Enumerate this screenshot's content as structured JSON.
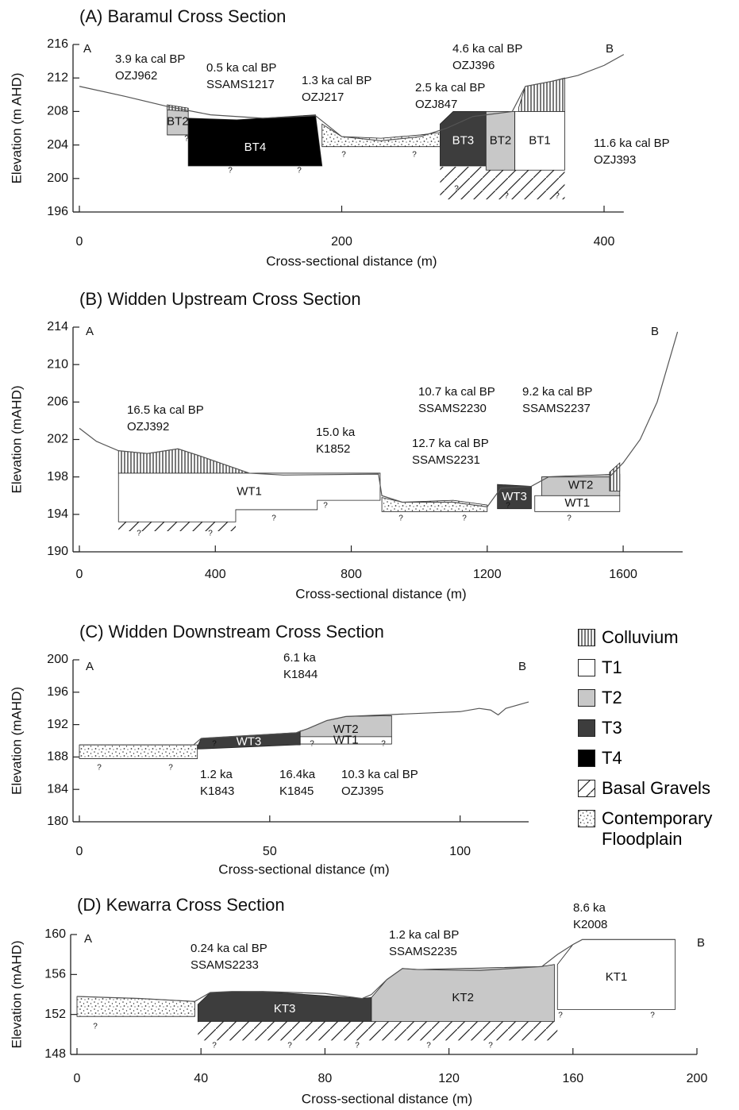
{
  "chart_data": [
    {
      "type": "profile",
      "title": "(A) Baramul Cross Section",
      "xlabel": "Cross-sectional distance (m)",
      "ylabel": "Elevation (m AHD)",
      "xlim": [
        0,
        415
      ],
      "ylim": [
        196,
        216
      ],
      "xticks": [
        0,
        200,
        400
      ],
      "yticks": [
        196,
        200,
        204,
        208,
        212,
        216
      ],
      "end_labels": [
        "A",
        "B"
      ],
      "series": [
        {
          "color": "#555555",
          "x": [
            0,
            35,
            67,
            100,
            140,
            180,
            200,
            230,
            260,
            280,
            300,
            330,
            340,
            360,
            380,
            400,
            415
          ],
          "values": [
            211,
            209.8,
            208.6,
            207.6,
            207.2,
            207.5,
            205,
            204.5,
            205,
            206,
            207.4,
            208,
            211,
            211.6,
            212.3,
            213.5,
            214.8
          ]
        }
      ],
      "units": [
        {
          "fill": "diagonal-hatch",
          "x": [
            275,
            370
          ],
          "top": [
            201.4,
            201.4
          ],
          "bottom": [
            197.5,
            197.5
          ]
        },
        {
          "name": "BT2",
          "fill": "#c8c8c8",
          "x": [
            67,
            83
          ],
          "top": [
            208.5,
            208.2
          ],
          "bottom": [
            205.2,
            205.2
          ]
        },
        {
          "fill": "vertical-hatch",
          "x": [
            67,
            83
          ],
          "top": [
            208.8,
            208.4
          ],
          "bottom": [
            208.2,
            208.0
          ]
        },
        {
          "name": "BT4",
          "fill": "#000000",
          "x": [
            83,
            120,
            180,
            185
          ],
          "top": [
            207.2,
            207,
            207.6,
            201.5
          ],
          "bottom": [
            201.5,
            201.5,
            201.5,
            201.5
          ]
        },
        {
          "fill": "stipple",
          "x": [
            185,
            200,
            230,
            260,
            275
          ],
          "top": [
            206.5,
            205,
            204.8,
            205.2,
            205.5
          ],
          "bottom": [
            203.8,
            203.8,
            203.8,
            203.8,
            203.8
          ]
        },
        {
          "name": "BT3",
          "fill": "#3d3d3d",
          "x": [
            275,
            285,
            310
          ],
          "top": [
            206.5,
            208,
            208
          ],
          "bottom": [
            201.5,
            201.5,
            201.5
          ]
        },
        {
          "name": "BT2",
          "fill": "#c8c8c8",
          "x": [
            310,
            332
          ],
          "top": [
            208,
            208
          ],
          "bottom": [
            201,
            201
          ]
        },
        {
          "name": "BT1",
          "fill": "#ffffff",
          "x": [
            332,
            370
          ],
          "top": [
            208,
            208
          ],
          "bottom": [
            201,
            201
          ]
        },
        {
          "fill": "vertical-hatch",
          "x": [
            335,
            340,
            360,
            370
          ],
          "top": [
            208.5,
            211,
            211.6,
            212
          ],
          "bottom": [
            208,
            208,
            208,
            208
          ]
        }
      ],
      "annotations": [
        [
          "3.9 ka cal BP",
          "OZJ962"
        ],
        [
          "0.5 ka cal BP",
          "SSAMS1217"
        ],
        [
          "1.3 ka cal BP",
          "OZJ217"
        ],
        [
          "4.6 ka cal  BP",
          "OZJ396"
        ],
        [
          "2.5 ka cal BP",
          "OZJ847"
        ],
        [
          "11.6 ka cal BP",
          "OZJ393"
        ]
      ],
      "query_marks": [
        "?",
        "?",
        "?",
        "?",
        "?",
        "?",
        "?",
        "?"
      ]
    },
    {
      "type": "profile",
      "title": "(B) Widden Upstream Cross Section",
      "xlabel": "Cross-sectional distance (m)",
      "ylabel": "Elevation (mAHD)",
      "xlim": [
        0,
        1775
      ],
      "ylim": [
        190,
        214
      ],
      "xticks": [
        0,
        400,
        800,
        1200,
        1600
      ],
      "yticks": [
        190,
        194,
        198,
        202,
        206,
        210,
        214
      ],
      "end_labels": [
        "A",
        "B"
      ],
      "series": [
        {
          "color": "#555555",
          "x": [
            0,
            50,
            115,
            200,
            290,
            350,
            500,
            600,
            880,
            890,
            950,
            1100,
            1200,
            1240,
            1330,
            1380,
            1420,
            1560,
            1600,
            1650,
            1700,
            1760
          ],
          "values": [
            203.2,
            201.8,
            200.8,
            200.5,
            201,
            200.3,
            198.4,
            198.2,
            198.3,
            196,
            195.3,
            195.3,
            194.8,
            196.8,
            197,
            198,
            198,
            198,
            199.5,
            202,
            206,
            213.5
          ]
        }
      ],
      "units": [
        {
          "fill": "diagonal-hatch",
          "x": [
            115,
            460
          ],
          "top": [
            193.2,
            193.2
          ],
          "bottom": [
            192.2,
            192.2
          ]
        },
        {
          "fill": "vertical-hatch",
          "x": [
            115,
            200,
            290,
            350,
            500
          ],
          "top": [
            200.8,
            200.5,
            201,
            200.3,
            198.4
          ],
          "bottom": [
            198.4,
            198.4,
            198.4,
            198.4,
            198.4
          ]
        },
        {
          "name": "WT1",
          "fill": "#ffffff",
          "x": [
            115,
            460,
            460,
            700,
            700,
            885
          ],
          "top": [
            198.4,
            198.4,
            198.4,
            198.4,
            198.4,
            198.4
          ],
          "bottom": [
            193.2,
            193.2,
            194.5,
            194.5,
            195.5,
            195.5
          ]
        },
        {
          "fill": "stipple",
          "x": [
            890,
            950,
            1100,
            1200
          ],
          "top": [
            195.8,
            195.3,
            195.5,
            195
          ],
          "bottom": [
            194.3,
            194.3,
            194.3,
            194.3
          ]
        },
        {
          "name": "WT3",
          "fill": "#3d3d3d",
          "x": [
            1230,
            1330
          ],
          "top": [
            197.2,
            197
          ],
          "bottom": [
            194.6,
            194.6
          ]
        },
        {
          "name": "WT1",
          "fill": "#ffffff",
          "x": [
            1340,
            1590
          ],
          "top": [
            196,
            196
          ],
          "bottom": [
            194.3,
            194.3
          ]
        },
        {
          "name": "WT2",
          "fill": "#c8c8c8",
          "x": [
            1360,
            1590
          ],
          "top": [
            198,
            198.3
          ],
          "bottom": [
            196,
            196
          ]
        },
        {
          "fill": "vertical-hatch",
          "x": [
            1560,
            1590
          ],
          "top": [
            198.5,
            199.5
          ],
          "bottom": [
            196.5,
            196.5
          ]
        }
      ],
      "annotations": [
        [
          "16.5 ka cal BP",
          "OZJ392"
        ],
        [
          "15.0 ka",
          "K1852"
        ],
        [
          "10.7 ka cal BP",
          "SSAMS2230"
        ],
        [
          "12.7 ka cal BP",
          "SSAMS2231"
        ],
        [
          "9.2 ka cal BP",
          "SSAMS2237"
        ]
      ],
      "query_marks": [
        "?",
        "?",
        "?",
        "?",
        "?",
        "?",
        "?",
        "?"
      ]
    },
    {
      "type": "profile",
      "title": "(C) Widden Downstream Cross Section",
      "xlabel": "Cross-sectional distance (m)",
      "ylabel": "Elevation (mAHD)",
      "xlim": [
        0,
        118
      ],
      "ylim": [
        180,
        200
      ],
      "xticks": [
        0,
        50,
        100
      ],
      "yticks": [
        180,
        184,
        188,
        192,
        196,
        200
      ],
      "end_labels": [
        "A",
        "B"
      ],
      "series": [
        {
          "color": "#555555",
          "x": [
            0,
            30,
            32,
            57,
            60,
            65,
            70,
            80,
            90,
            100,
            105,
            108,
            110,
            112,
            118
          ],
          "values": [
            189.5,
            189.5,
            190.3,
            191,
            191.5,
            192.5,
            193,
            193.2,
            193.4,
            193.6,
            194,
            193.8,
            193.2,
            194,
            194.8
          ]
        }
      ],
      "units": [
        {
          "fill": "stipple",
          "x": [
            0,
            31
          ],
          "top": [
            189.5,
            189.5
          ],
          "bottom": [
            187.8,
            187.8
          ]
        },
        {
          "name": "WT3",
          "fill": "#3d3d3d",
          "x": [
            31,
            32,
            57,
            58
          ],
          "top": [
            189.3,
            190.3,
            191,
            191.2
          ],
          "bottom": [
            189,
            189,
            189.5,
            189.5
          ]
        },
        {
          "name": "WT2",
          "fill": "#c8c8c8",
          "x": [
            58,
            60,
            65,
            70,
            82
          ],
          "top": [
            191.2,
            191.5,
            192.5,
            193,
            193.1
          ],
          "bottom": [
            190.5,
            190.5,
            190.5,
            190.5,
            190.5
          ]
        },
        {
          "name": "WT1",
          "fill": "#ffffff",
          "x": [
            58,
            82
          ],
          "top": [
            190.5,
            190.5
          ],
          "bottom": [
            189.6,
            189.6
          ]
        }
      ],
      "annotations": [
        [
          "6.1 ka",
          "K1844"
        ],
        [
          "1.2 ka",
          "K1843"
        ],
        [
          "16.4ka",
          "K1845"
        ],
        [
          "10.3 ka cal BP",
          "OZJ395"
        ]
      ],
      "query_marks": [
        "?",
        "?",
        "?",
        "?",
        "?"
      ],
      "legend": [
        {
          "name": "Colluvium",
          "fill": "vertical-hatch"
        },
        {
          "name": "T1",
          "fill": "#ffffff"
        },
        {
          "name": "T2",
          "fill": "#c8c8c8"
        },
        {
          "name": "T3",
          "fill": "#3d3d3d"
        },
        {
          "name": "T4",
          "fill": "#000000"
        },
        {
          "name": "Basal Gravels",
          "fill": "diagonal-hatch"
        },
        {
          "name": "Contemporary Floodplain",
          "fill": "stipple"
        }
      ]
    },
    {
      "type": "profile",
      "title": "(D) Kewarra Cross Section",
      "xlabel": "Cross-sectional distance (m)",
      "ylabel": "Elevation (mAHD)",
      "xlim": [
        0,
        200
      ],
      "ylim": [
        148,
        160
      ],
      "xticks": [
        0,
        40,
        80,
        120,
        160,
        200
      ],
      "yticks": [
        148,
        152,
        156,
        160
      ],
      "end_labels": [
        "A",
        "B"
      ],
      "series": [
        {
          "color": "#555555",
          "x": [
            0,
            20,
            38,
            43,
            50,
            60,
            80,
            92,
            95,
            100,
            105,
            110,
            130,
            150,
            155,
            160,
            163,
            166,
            193
          ],
          "values": [
            153.8,
            153.6,
            153.3,
            154.2,
            154.3,
            154.3,
            154.1,
            153.6,
            154,
            155.5,
            156.6,
            156.5,
            156.4,
            156.8,
            158,
            159,
            159.5,
            159.5,
            159.5
          ]
        }
      ],
      "units": [
        {
          "fill": "diagonal-hatch",
          "x": [
            39,
            155
          ],
          "top": [
            151.3,
            151.3
          ],
          "bottom": [
            149.4,
            149.4
          ]
        },
        {
          "fill": "stipple",
          "x": [
            0,
            20,
            38
          ],
          "top": [
            153.8,
            153.6,
            153.3
          ],
          "bottom": [
            151.8,
            151.8,
            151.8
          ]
        },
        {
          "name": "KT3",
          "fill": "#3d3d3d",
          "x": [
            39,
            43,
            60,
            92,
            95
          ],
          "top": [
            153,
            154.2,
            154.3,
            153.6,
            153.7
          ],
          "bottom": [
            151.3,
            151.3,
            151.3,
            151.3,
            151.3
          ]
        },
        {
          "name": "KT2",
          "fill": "#c8c8c8",
          "x": [
            95,
            100,
            105,
            110,
            150,
            154
          ],
          "top": [
            153.7,
            155.5,
            156.6,
            156.5,
            156.8,
            157
          ],
          "bottom": [
            151.3,
            151.3,
            151.3,
            151.3,
            151.3,
            151.3
          ]
        },
        {
          "name": "KT1",
          "fill": "#ffffff",
          "x": [
            155,
            160,
            163,
            166,
            193
          ],
          "top": [
            157,
            159,
            159.5,
            159.5,
            159.5
          ],
          "bottom": [
            152.5,
            152.5,
            152.5,
            152.5,
            152.5
          ]
        }
      ],
      "annotations": [
        [
          "0.24 ka cal BP",
          "SSAMS2233"
        ],
        [
          "1.2 ka cal BP",
          "SSAMS2235"
        ],
        [
          "8.6 ka",
          "K2008"
        ]
      ],
      "query_marks": [
        "?",
        "?",
        "?",
        "?",
        "?",
        "?",
        "?",
        "?"
      ]
    }
  ]
}
